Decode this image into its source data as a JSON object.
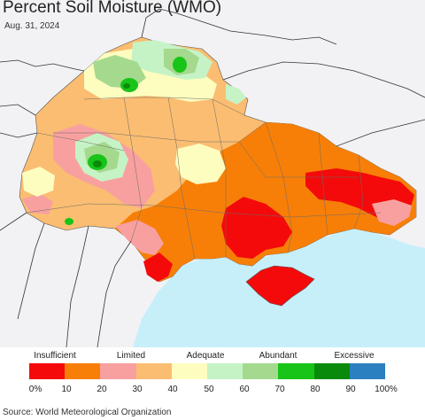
{
  "title": "Percent Soil Moisture (WMO)",
  "date": "Aug. 31, 2024",
  "source": "Source: World Meteorological Organization",
  "legend": {
    "categories": [
      "Insufficient",
      "Limited",
      "Adequate",
      "Abundant",
      "Excessive"
    ],
    "ticks": [
      "0%",
      "10",
      "20",
      "30",
      "40",
      "50",
      "60",
      "70",
      "80",
      "90",
      "100%"
    ],
    "colors": [
      "#f40a0a",
      "#f77f07",
      "#f8a0a0",
      "#fbbd71",
      "#fdfdbf",
      "#c6f3c6",
      "#a5d98e",
      "#18c418",
      "#0a8a0a",
      "#2b80c0"
    ]
  },
  "map": {
    "land_color": "#f2f2f4",
    "sea_color": "#c7effa",
    "border_color": "#333333"
  }
}
